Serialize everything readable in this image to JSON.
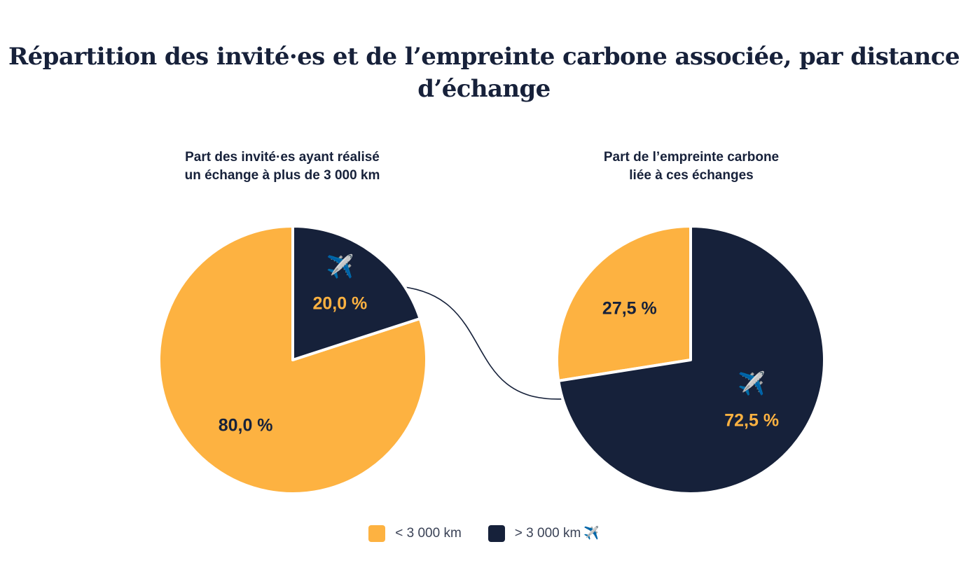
{
  "title": "Répartition des invité·es et de l’empreinte carbone associée, par distance d’échange",
  "colors": {
    "short": "#FDB241",
    "long": "#16213A",
    "connector": "#16213A"
  },
  "legend": [
    {
      "label": "< 3 000 km",
      "color": "#FDB241",
      "icon": ""
    },
    {
      "label": "> 3 000 km",
      "color": "#16213A",
      "icon": "✈️"
    }
  ],
  "chart_data": [
    {
      "type": "pie",
      "title_lines": [
        "Part des invité·es ayant réalisé",
        "un échange à plus de 3 000 km"
      ],
      "slices": [
        {
          "name": "> 3 000 km",
          "value": 20.0,
          "label": "20,0 %",
          "icon": "✈️"
        },
        {
          "name": "< 3 000 km",
          "value": 80.0,
          "label": "80,0 %",
          "icon": ""
        }
      ]
    },
    {
      "type": "pie",
      "title_lines": [
        "Part de l’empreinte carbone",
        "liée à ces échanges"
      ],
      "slices": [
        {
          "name": "> 3 000 km",
          "value": 72.5,
          "label": "72,5 %",
          "icon": "✈️"
        },
        {
          "name": "< 3 000 km",
          "value": 27.5,
          "label": "27,5 %",
          "icon": ""
        }
      ]
    }
  ]
}
